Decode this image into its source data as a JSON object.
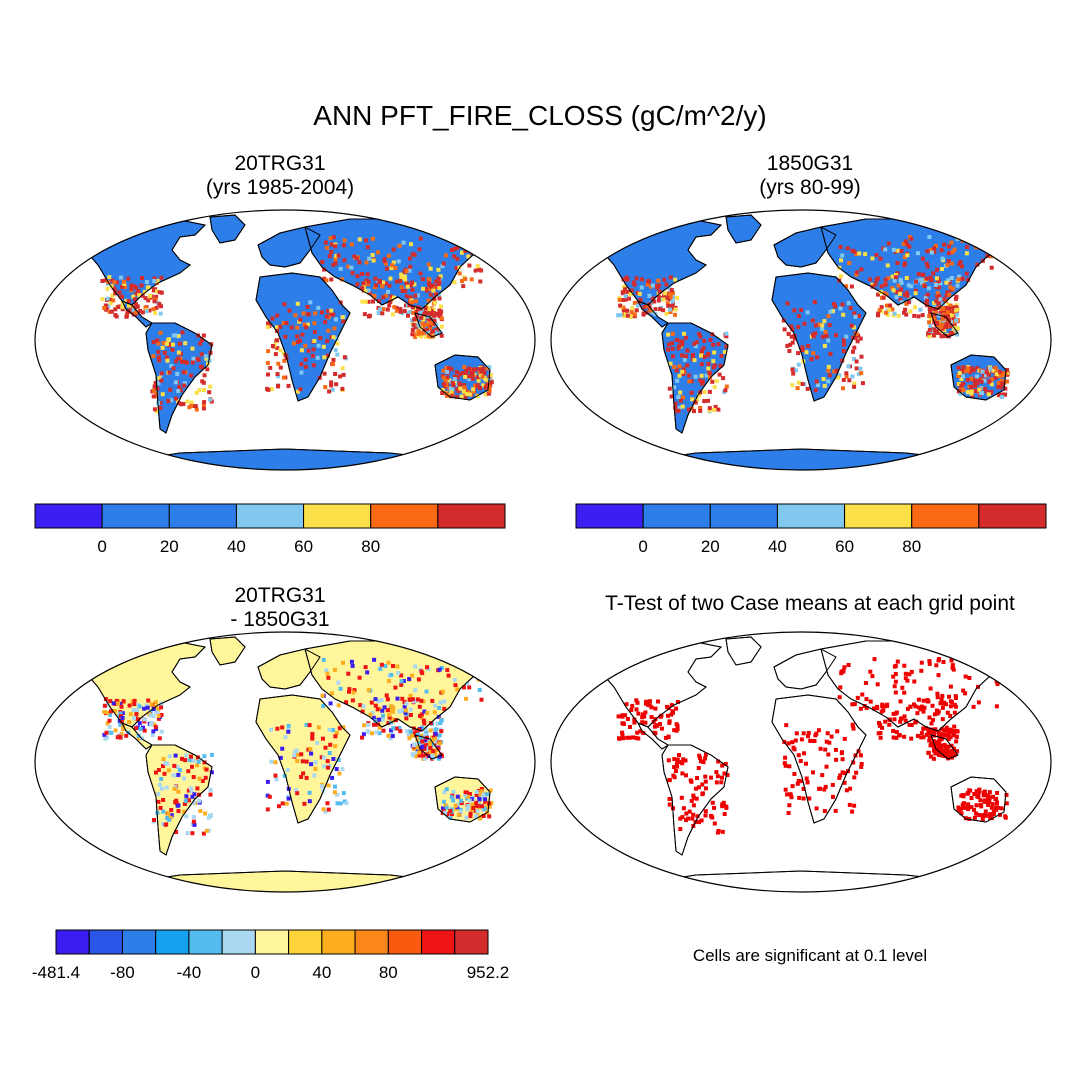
{
  "title": "ANN PFT_FIRE_CLOSS (gC/m^2/y)",
  "panels": [
    {
      "id": "case1",
      "title_line1": "20TRG31",
      "title_line2": "(yrs 1985-2004)"
    },
    {
      "id": "case2",
      "title_line1": "1850G31",
      "title_line2": "(yrs 80-99)"
    },
    {
      "id": "diff",
      "title_line1": "20TRG31",
      "title_line2": "- 1850G31"
    },
    {
      "id": "ttest",
      "title_line1": "T-Test of two Case means at each grid point"
    }
  ],
  "colorbar_top": {
    "colors": [
      "#3b1ef0",
      "#2b7ae6",
      "#2f80e8",
      "#7fcaf0",
      "#fde048",
      "#fb6410",
      "#d92a2a"
    ],
    "bins": [
      "#3b1ef0",
      "#2d7ee8",
      "#2d7ee8",
      "#80c8f0",
      "#fce04a",
      "#f96a14",
      "#d42c2c"
    ],
    "labels": [
      "0",
      "20",
      "40",
      "60",
      "80"
    ]
  },
  "colorbar_diff": {
    "bins": [
      "#3a1ef0",
      "#2a55e6",
      "#2d7ee8",
      "#16a0f0",
      "#54bdf0",
      "#aad8f2",
      "#fff59a",
      "#fdd53a",
      "#fcae1e",
      "#fb861a",
      "#f85a10",
      "#ee1414",
      "#d42c2c"
    ],
    "labels": [
      "-481.4",
      "-80",
      "-40",
      "0",
      "40",
      "80",
      "952.2"
    ]
  },
  "significance_color": "#ee0000",
  "note": "Cells are significant at 0.1 level"
}
